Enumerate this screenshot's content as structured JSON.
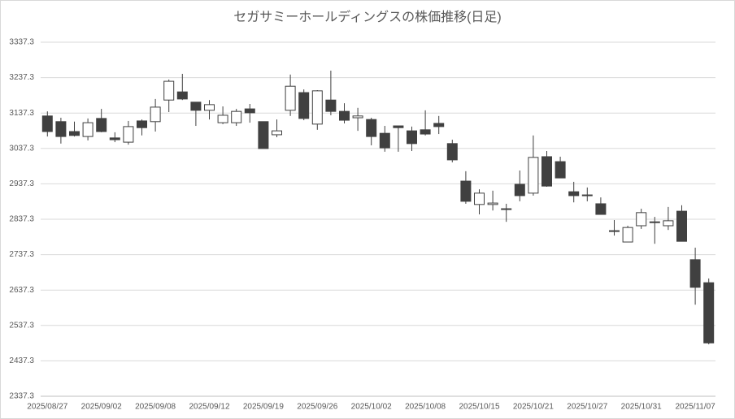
{
  "chart_data": {
    "type": "candlestick",
    "title": "セガサミーホールディングスの株価推移(日足)",
    "categories": [
      "2025/08/27",
      null,
      null,
      null,
      "2025/09/02",
      null,
      null,
      null,
      "2025/09/08",
      null,
      null,
      null,
      "2025/09/12",
      null,
      null,
      null,
      "2025/09/19",
      null,
      null,
      null,
      "2025/09/26",
      null,
      null,
      null,
      "2025/10/02",
      null,
      null,
      null,
      "2025/10/08",
      null,
      null,
      null,
      "2025/10/15",
      null,
      null,
      null,
      "2025/10/21",
      null,
      null,
      null,
      "2025/10/27",
      null,
      null,
      null,
      "2025/10/31",
      null,
      null,
      null,
      "2025/11/07",
      null
    ],
    "open": [
      3129,
      3113,
      3085,
      3071,
      3122,
      3067,
      3055,
      3115,
      3113,
      3174,
      3197,
      3168,
      3145,
      3110,
      3110,
      3149,
      3113,
      3076,
      3145,
      3195,
      3106,
      3174,
      3142,
      3124,
      3119,
      3080,
      3101,
      3087,
      3090,
      3108,
      3051,
      2945,
      2879,
      2879,
      2867,
      2936,
      2911,
      3014,
      3000,
      2915,
      2906,
      2881,
      2805,
      2773,
      2819,
      2830,
      2819,
      2860,
      2723,
      2658
    ],
    "high": [
      3142,
      3124,
      3113,
      3122,
      3149,
      3083,
      3115,
      3119,
      3177,
      3232,
      3248,
      3168,
      3174,
      3156,
      3149,
      3163,
      3113,
      3119,
      3246,
      3204,
      3202,
      3257,
      3165,
      3152,
      3124,
      3101,
      3101,
      3099,
      3145,
      3129,
      3062,
      2973,
      2922,
      2918,
      2881,
      2975,
      3074,
      3030,
      3014,
      2943,
      2927,
      2899,
      2835,
      2819,
      2867,
      2844,
      2872,
      2877,
      2757,
      2670
    ],
    "low": [
      3071,
      3051,
      3071,
      3060,
      3083,
      3055,
      3048,
      3074,
      3085,
      3140,
      3174,
      3101,
      3119,
      3106,
      3101,
      3110,
      3037,
      3069,
      3129,
      3117,
      3090,
      3131,
      3108,
      3087,
      3046,
      3028,
      3028,
      3030,
      3074,
      3078,
      2998,
      2881,
      2851,
      2862,
      2830,
      2888,
      2904,
      2929,
      2954,
      2885,
      2888,
      2851,
      2791,
      2773,
      2810,
      2768,
      2807,
      2775,
      2596,
      2484
    ],
    "close": [
      3085,
      3071,
      3074,
      3110,
      3085,
      3062,
      3099,
      3096,
      3154,
      3227,
      3177,
      3145,
      3161,
      3131,
      3142,
      3138,
      3037,
      3087,
      3213,
      3122,
      3200,
      3142,
      3117,
      3129,
      3071,
      3039,
      3096,
      3051,
      3078,
      3099,
      3005,
      2888,
      2911,
      2883,
      2865,
      2904,
      3012,
      2931,
      2954,
      2904,
      2904,
      2851,
      2803,
      2814,
      2856,
      2828,
      2833,
      2775,
      2645,
      2488
    ],
    "up_color": "#ffffff",
    "down_color": "#404040",
    "ylim": [
      2337.3,
      3337.3
    ],
    "yticks": [
      2337.3,
      2437.3,
      2537.3,
      2637.3,
      2737.3,
      2837.3,
      2937.3,
      3037.3,
      3137.3,
      3237.3,
      3337.3
    ],
    "grid": true
  }
}
